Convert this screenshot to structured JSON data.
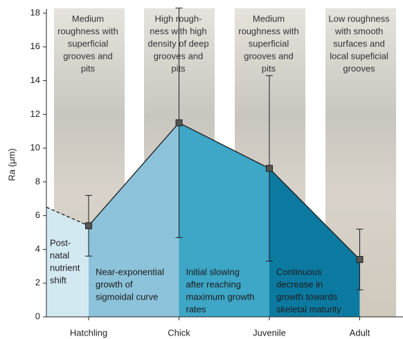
{
  "chart_data": {
    "type": "line",
    "y_label": "Ra  (μm)",
    "categories": [
      "Hatchling",
      "Chick",
      "Juvenile",
      "Adult"
    ],
    "values": [
      5.4,
      11.5,
      8.8,
      3.4
    ],
    "errors": [
      1.8,
      6.8,
      5.5,
      1.8
    ],
    "extrapolation_start": 6.5,
    "ylim": [
      0,
      18
    ],
    "yticks": [
      0,
      2,
      4,
      6,
      8,
      10,
      12,
      14,
      16,
      18
    ],
    "color": "#1a1a1a",
    "marker_color": "#555555",
    "descriptions": [
      [
        "Medium",
        "roughness with",
        "superficial",
        "grooves and",
        "pits"
      ],
      [
        "High rough-",
        "ness with high",
        "density of deep",
        "grooves and",
        "pits"
      ],
      [
        "Medium",
        "roughness with",
        "superficial",
        "grooves and",
        "pits"
      ],
      [
        "Low roughness",
        "with smooth",
        "surfaces and",
        "local supeficial",
        "grooves"
      ]
    ],
    "regions": [
      {
        "color": "#d3e9f2",
        "label": [
          "Post-",
          "natal",
          "nutrient",
          "shift"
        ]
      },
      {
        "color": "#8cc3da",
        "label": [
          "Near-exponential",
          "growth of",
          "sigmoidal curve"
        ]
      },
      {
        "color": "#3ea6c6",
        "label": [
          "Initial slowing",
          "after reaching",
          "maximum growth",
          "rates"
        ]
      },
      {
        "color": "#0c7aa0",
        "label": [
          "Continuous",
          "decrease in",
          "growth towards",
          "skeletal maturity"
        ]
      }
    ]
  }
}
